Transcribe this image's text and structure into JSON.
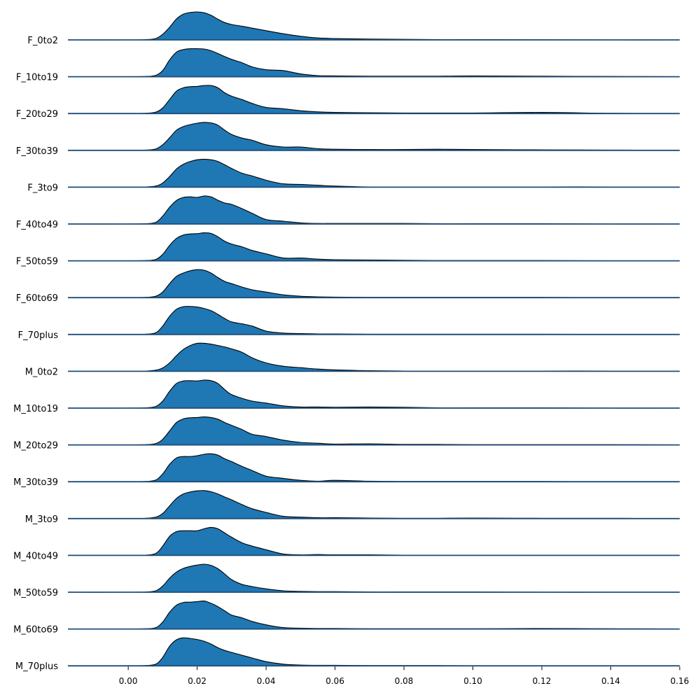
{
  "colors": {
    "fill": "#1f77b4",
    "outline": "#000000",
    "baseline": "#1f4e79"
  },
  "chart_data": {
    "type": "area",
    "subtype": "ridgeline-density",
    "title": "",
    "xlabel": "",
    "ylabel": "",
    "xlim": [
      -0.0175,
      0.16
    ],
    "xticks": [
      0.0,
      0.02,
      0.04,
      0.06,
      0.08,
      0.1,
      0.12,
      0.14,
      0.16
    ],
    "xtick_labels": [
      "0.00",
      "0.02",
      "0.04",
      "0.06",
      "0.08",
      "0.10",
      "0.12",
      "0.14",
      "0.16"
    ],
    "grid": false,
    "x": [
      -0.0175,
      0.0,
      0.005,
      0.008,
      0.01,
      0.012,
      0.014,
      0.016,
      0.018,
      0.02,
      0.022,
      0.024,
      0.026,
      0.028,
      0.03,
      0.033,
      0.036,
      0.04,
      0.045,
      0.05,
      0.055,
      0.06,
      0.07,
      0.08,
      0.09,
      0.1,
      0.12,
      0.14,
      0.16
    ],
    "series": [
      {
        "name": "F_0to2",
        "values": [
          0,
          0,
          0.01,
          0.05,
          0.2,
          0.45,
          0.75,
          0.92,
          0.98,
          1.0,
          0.97,
          0.88,
          0.74,
          0.62,
          0.55,
          0.49,
          0.42,
          0.33,
          0.22,
          0.13,
          0.07,
          0.05,
          0.03,
          0.02,
          0.01,
          0.01,
          0.005,
          0.0,
          0.0
        ]
      },
      {
        "name": "F_10to19",
        "values": [
          0,
          0,
          0.01,
          0.05,
          0.22,
          0.6,
          0.88,
          0.97,
          1.0,
          1.0,
          0.99,
          0.93,
          0.83,
          0.72,
          0.62,
          0.5,
          0.35,
          0.25,
          0.22,
          0.1,
          0.04,
          0.03,
          0.02,
          0.02,
          0.02,
          0.03,
          0.02,
          0.01,
          0.0
        ]
      },
      {
        "name": "F_20to29",
        "values": [
          0,
          0,
          0.01,
          0.05,
          0.2,
          0.5,
          0.8,
          0.92,
          0.96,
          0.97,
          1.0,
          1.0,
          0.92,
          0.74,
          0.62,
          0.5,
          0.36,
          0.22,
          0.17,
          0.1,
          0.06,
          0.04,
          0.03,
          0.02,
          0.02,
          0.02,
          0.04,
          0.01,
          0.0
        ]
      },
      {
        "name": "F_30to39",
        "values": [
          0,
          0,
          0.01,
          0.05,
          0.2,
          0.45,
          0.72,
          0.85,
          0.92,
          0.97,
          1.0,
          0.98,
          0.9,
          0.72,
          0.57,
          0.44,
          0.36,
          0.2,
          0.12,
          0.12,
          0.06,
          0.04,
          0.03,
          0.03,
          0.04,
          0.03,
          0.02,
          0.01,
          0.0
        ]
      },
      {
        "name": "F_3to9",
        "values": [
          0,
          0,
          0.01,
          0.04,
          0.15,
          0.38,
          0.65,
          0.82,
          0.92,
          0.98,
          1.0,
          0.98,
          0.92,
          0.8,
          0.67,
          0.5,
          0.4,
          0.25,
          0.12,
          0.1,
          0.07,
          0.04,
          0.01,
          0.01,
          0.01,
          0.01,
          0.01,
          0.01,
          0.0
        ]
      },
      {
        "name": "F_40to49",
        "values": [
          0,
          0,
          0.01,
          0.06,
          0.28,
          0.6,
          0.84,
          0.95,
          0.97,
          0.95,
          1.0,
          0.97,
          0.85,
          0.75,
          0.7,
          0.55,
          0.38,
          0.16,
          0.1,
          0.04,
          0.02,
          0.02,
          0.02,
          0.02,
          0.01,
          0.01,
          0.01,
          0.0,
          0.0
        ]
      },
      {
        "name": "F_50to59",
        "values": [
          0,
          0,
          0.01,
          0.05,
          0.23,
          0.55,
          0.8,
          0.92,
          0.96,
          0.97,
          1.0,
          0.98,
          0.86,
          0.7,
          0.6,
          0.5,
          0.37,
          0.25,
          0.1,
          0.1,
          0.06,
          0.04,
          0.03,
          0.02,
          0.01,
          0.01,
          0.01,
          0.0,
          0.0
        ]
      },
      {
        "name": "F_60to69",
        "values": [
          0,
          0,
          0.01,
          0.05,
          0.2,
          0.5,
          0.76,
          0.88,
          0.96,
          1.0,
          0.98,
          0.88,
          0.72,
          0.58,
          0.5,
          0.38,
          0.28,
          0.2,
          0.1,
          0.05,
          0.03,
          0.02,
          0.01,
          0.01,
          0.01,
          0.01,
          0.01,
          0.0,
          0.0
        ]
      },
      {
        "name": "F_70plus",
        "values": [
          0,
          0,
          0.01,
          0.06,
          0.3,
          0.65,
          0.9,
          0.99,
          1.0,
          0.98,
          0.93,
          0.85,
          0.72,
          0.57,
          0.45,
          0.38,
          0.3,
          0.12,
          0.05,
          0.03,
          0.02,
          0.02,
          0.01,
          0.01,
          0.01,
          0.01,
          0.01,
          0.0,
          0.0
        ]
      },
      {
        "name": "M_0to2",
        "values": [
          0,
          0,
          0.01,
          0.04,
          0.12,
          0.3,
          0.56,
          0.78,
          0.92,
          1.0,
          1.0,
          0.97,
          0.92,
          0.87,
          0.8,
          0.68,
          0.48,
          0.3,
          0.18,
          0.13,
          0.08,
          0.05,
          0.02,
          0.01,
          0.01,
          0.01,
          0.01,
          0.01,
          0.0
        ]
      },
      {
        "name": "M_10to19",
        "values": [
          0,
          0,
          0.01,
          0.06,
          0.25,
          0.6,
          0.88,
          0.97,
          0.98,
          0.97,
          1.0,
          0.98,
          0.88,
          0.66,
          0.48,
          0.35,
          0.25,
          0.18,
          0.08,
          0.04,
          0.04,
          0.03,
          0.04,
          0.03,
          0.01,
          0.01,
          0.01,
          0.0,
          0.0
        ]
      },
      {
        "name": "M_20to29",
        "values": [
          0,
          0,
          0.01,
          0.05,
          0.2,
          0.5,
          0.8,
          0.93,
          0.97,
          0.98,
          1.0,
          0.98,
          0.92,
          0.8,
          0.7,
          0.55,
          0.38,
          0.3,
          0.17,
          0.09,
          0.06,
          0.03,
          0.04,
          0.02,
          0.02,
          0.01,
          0.01,
          0.01,
          0.0
        ]
      },
      {
        "name": "M_30to39",
        "values": [
          0,
          0,
          0.01,
          0.06,
          0.28,
          0.62,
          0.85,
          0.9,
          0.9,
          0.93,
          0.98,
          1.0,
          0.95,
          0.82,
          0.72,
          0.55,
          0.4,
          0.2,
          0.12,
          0.05,
          0.02,
          0.05,
          0.02,
          0.01,
          0.01,
          0.01,
          0.01,
          0.0,
          0.0
        ]
      },
      {
        "name": "M_3to9",
        "values": [
          0,
          0,
          0.01,
          0.05,
          0.18,
          0.45,
          0.72,
          0.88,
          0.95,
          0.99,
          1.0,
          0.96,
          0.88,
          0.77,
          0.67,
          0.5,
          0.35,
          0.22,
          0.08,
          0.05,
          0.03,
          0.03,
          0.02,
          0.01,
          0.01,
          0.02,
          0.01,
          0.01,
          0.0
        ]
      },
      {
        "name": "M_40to49",
        "values": [
          0,
          0,
          0.01,
          0.07,
          0.33,
          0.68,
          0.85,
          0.88,
          0.88,
          0.88,
          0.95,
          1.0,
          0.95,
          0.8,
          0.65,
          0.45,
          0.33,
          0.2,
          0.05,
          0.02,
          0.03,
          0.02,
          0.02,
          0.01,
          0.01,
          0.0,
          0.0,
          0.0,
          0.0
        ]
      },
      {
        "name": "M_50to59",
        "values": [
          0,
          0,
          0.01,
          0.05,
          0.22,
          0.5,
          0.72,
          0.85,
          0.92,
          0.97,
          1.0,
          0.96,
          0.84,
          0.65,
          0.45,
          0.28,
          0.2,
          0.12,
          0.05,
          0.03,
          0.02,
          0.02,
          0.01,
          0.01,
          0.01,
          0.01,
          0.0,
          0.0,
          0.0
        ]
      },
      {
        "name": "M_60to69",
        "values": [
          0,
          0,
          0.01,
          0.05,
          0.25,
          0.6,
          0.85,
          0.95,
          0.96,
          0.98,
          1.0,
          0.92,
          0.8,
          0.65,
          0.5,
          0.4,
          0.27,
          0.15,
          0.05,
          0.03,
          0.02,
          0.02,
          0.01,
          0.01,
          0.01,
          0.01,
          0.02,
          0.01,
          0.0
        ]
      },
      {
        "name": "M_70plus",
        "values": [
          0,
          0,
          0.01,
          0.06,
          0.3,
          0.7,
          0.93,
          1.0,
          0.98,
          0.94,
          0.88,
          0.78,
          0.65,
          0.55,
          0.48,
          0.38,
          0.28,
          0.15,
          0.06,
          0.03,
          0.02,
          0.02,
          0.01,
          0.01,
          0.01,
          0.0,
          0.0,
          0.0,
          0.0
        ]
      }
    ]
  }
}
